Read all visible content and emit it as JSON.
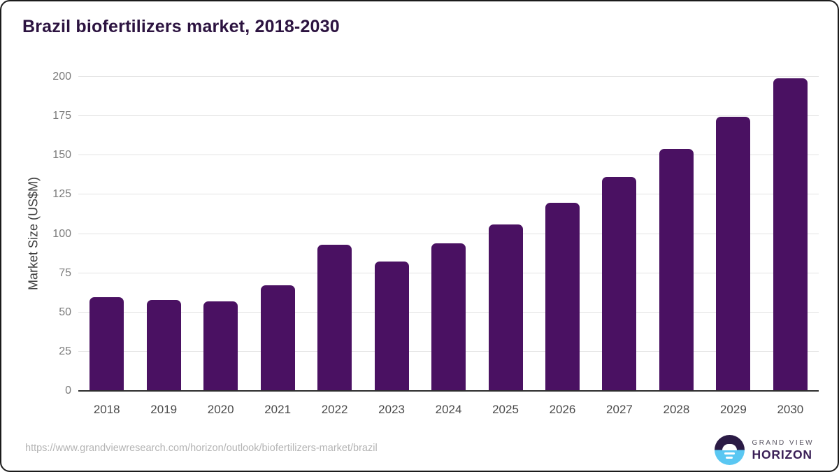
{
  "title": "Brazil biofertilizers market, 2018-2030",
  "chart_data": {
    "type": "bar",
    "categories": [
      "2018",
      "2019",
      "2020",
      "2021",
      "2022",
      "2023",
      "2024",
      "2025",
      "2026",
      "2027",
      "2028",
      "2029",
      "2030"
    ],
    "values": [
      59.5,
      58.1,
      56.9,
      67.2,
      93.3,
      82.6,
      94.1,
      106.1,
      119.9,
      136.2,
      154.1,
      174.8,
      199.2
    ],
    "title": "Brazil biofertilizers market, 2018-2030",
    "xlabel": "",
    "ylabel": "Market Size (US$M)",
    "ylim": [
      0,
      200
    ],
    "ytick_step": 25,
    "grid": "horizontal",
    "legend": "none",
    "bar_color": "#4a1162"
  },
  "footer": {
    "source_url": "https://www.grandviewresearch.com/horizon/outlook/biofertilizers-market/brazil",
    "logo": {
      "top_text": "GRAND VIEW",
      "bottom_text": "HORIZON"
    }
  },
  "colors": {
    "title": "#2c1340",
    "bar": "#4a1162",
    "gridline": "#e3e3e3",
    "axis_line": "#2e2e2e",
    "y_tick": "#7b7b7b",
    "x_label": "#4a4a4a",
    "url": "#b4b4b4",
    "logo_dark": "#2b1b45",
    "logo_blue": "#5ac7f2"
  }
}
